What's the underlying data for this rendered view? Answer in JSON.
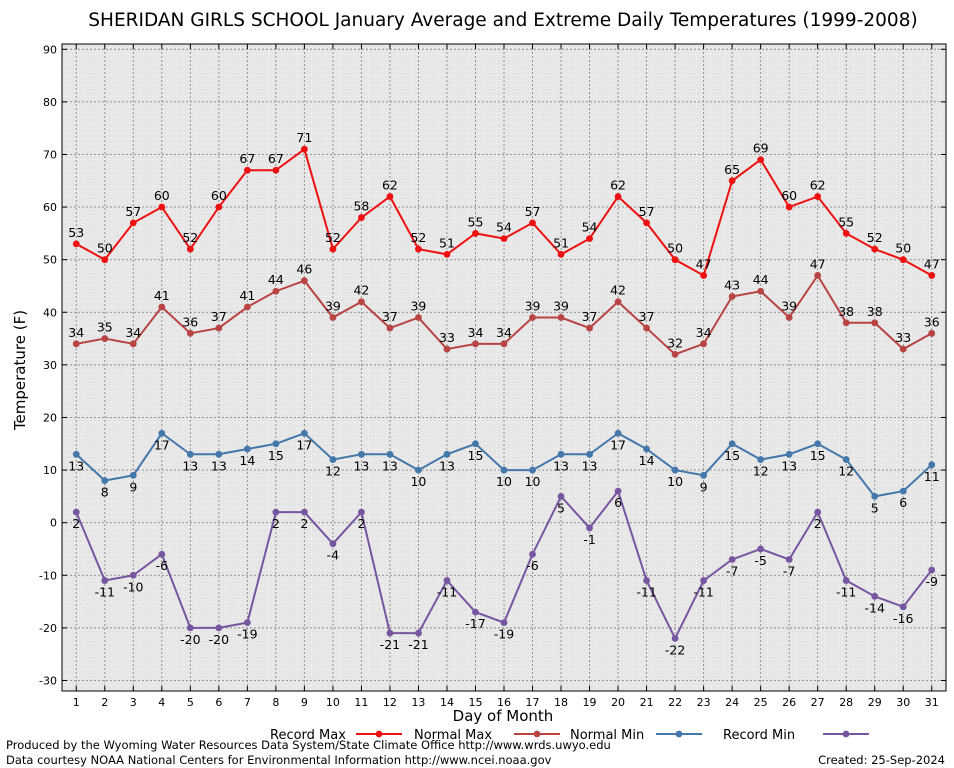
{
  "chart_data": {
    "type": "line",
    "title": "SHERIDAN GIRLS SCHOOL January Average and Extreme Daily Temperatures (1999-2008)",
    "xlabel": "Day of Month",
    "ylabel": "Temperature (F)",
    "x": [
      1,
      2,
      3,
      4,
      5,
      6,
      7,
      8,
      9,
      10,
      11,
      12,
      13,
      14,
      15,
      16,
      17,
      18,
      19,
      20,
      21,
      22,
      23,
      24,
      25,
      26,
      27,
      28,
      29,
      30,
      31
    ],
    "xlim": [
      0.5,
      31.5
    ],
    "ylim": [
      -32,
      91
    ],
    "yticks": [
      -30,
      -20,
      -10,
      0,
      10,
      20,
      30,
      40,
      50,
      60,
      70,
      80,
      90
    ],
    "grid": true,
    "legend_position": "bottom",
    "series": [
      {
        "name": "Record Max",
        "color": "#ee1111",
        "label_pos": "above",
        "values": [
          53,
          50,
          57,
          60,
          52,
          60,
          67,
          67,
          71,
          52,
          58,
          62,
          52,
          51,
          55,
          54,
          57,
          51,
          54,
          62,
          57,
          50,
          47,
          65,
          69,
          60,
          62,
          55,
          52,
          50,
          47
        ]
      },
      {
        "name": "Normal Max",
        "color": "#b84444",
        "label_pos": "above",
        "values": [
          34,
          35,
          34,
          41,
          36,
          37,
          41,
          44,
          46,
          39,
          42,
          37,
          39,
          33,
          34,
          34,
          39,
          39,
          37,
          42,
          37,
          32,
          34,
          43,
          44,
          39,
          47,
          38,
          38,
          33,
          36
        ]
      },
      {
        "name": "Normal Min",
        "color": "#4477aa",
        "label_pos": "below",
        "values": [
          13,
          8,
          9,
          17,
          13,
          13,
          14,
          15,
          17,
          12,
          13,
          13,
          10,
          13,
          15,
          10,
          10,
          13,
          13,
          17,
          14,
          10,
          9,
          15,
          12,
          13,
          15,
          12,
          5,
          6,
          11
        ]
      },
      {
        "name": "Record Min",
        "color": "#7755a0",
        "label_pos": "below",
        "values": [
          2,
          -11,
          -10,
          -6,
          -20,
          -20,
          -19,
          2,
          2,
          -4,
          2,
          -21,
          -21,
          -11,
          -17,
          -19,
          -6,
          5,
          -1,
          6,
          -11,
          -22,
          -11,
          -7,
          -5,
          -7,
          2,
          -11,
          -14,
          -16,
          -9
        ]
      }
    ]
  },
  "footer": {
    "line1": "Produced by the Wyoming Water Resources Data System/State Climate Office http://www.wrds.uwyo.edu",
    "line2": "Data courtesy NOAA National Centers for Environmental Information http://www.ncei.noaa.gov",
    "created": "Created:  25-Sep-2024"
  }
}
